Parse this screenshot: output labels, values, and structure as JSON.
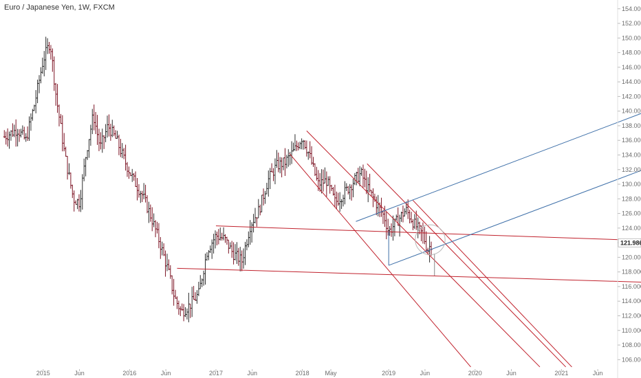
{
  "title": "Euro / Japanese Yen, 1W, FXCM",
  "chart_data": {
    "type": "ohlc-line",
    "symbol": "Euro / Japanese Yen",
    "interval": "1W",
    "source": "FXCM",
    "ylim": [
      105,
      155
    ],
    "xlim": [
      2014.5,
      2021.75
    ],
    "y_ticks": [
      106,
      108,
      110,
      112,
      114,
      116,
      118,
      120,
      122,
      124,
      126,
      128,
      130,
      132,
      134,
      136,
      138,
      140,
      142,
      144,
      146,
      148,
      150,
      152,
      154
    ],
    "y_tick_labels": [
      "106.000",
      "108.000",
      "110.000",
      "112.000",
      "114.000",
      "116.000",
      "118.000",
      "120.000",
      "122.000",
      "124.000",
      "126.000",
      "128.000",
      "130.000",
      "132.000",
      "134.000",
      "136.000",
      "138.000",
      "140.000",
      "142.000",
      "144.000",
      "146.000",
      "148.000",
      "150.000",
      "152.000",
      "154.000"
    ],
    "x_ticks": [
      {
        "t": 2015.0,
        "label": "2015"
      },
      {
        "t": 2015.42,
        "label": "Jun"
      },
      {
        "t": 2016.0,
        "label": "2016"
      },
      {
        "t": 2016.42,
        "label": "Jun"
      },
      {
        "t": 2017.0,
        "label": "2017"
      },
      {
        "t": 2017.42,
        "label": "Jun"
      },
      {
        "t": 2018.0,
        "label": "2018"
      },
      {
        "t": 2018.33,
        "label": "May"
      },
      {
        "t": 2019.0,
        "label": "2019"
      },
      {
        "t": 2019.42,
        "label": "Jun"
      },
      {
        "t": 2020.0,
        "label": "2020"
      },
      {
        "t": 2020.42,
        "label": "Jun"
      },
      {
        "t": 2021.0,
        "label": "2021"
      },
      {
        "t": 2021.42,
        "label": "Jun"
      }
    ],
    "last_price": 121.986,
    "last_price_label": "121.986",
    "price_path": [
      [
        2014.55,
        136.5
      ],
      [
        2014.7,
        137.5
      ],
      [
        2014.8,
        136.0
      ],
      [
        2014.9,
        141.0
      ],
      [
        2015.0,
        147.0
      ],
      [
        2015.08,
        149.5
      ],
      [
        2015.15,
        142.0
      ],
      [
        2015.25,
        134.0
      ],
      [
        2015.35,
        128.0
      ],
      [
        2015.42,
        127.5
      ],
      [
        2015.5,
        134.5
      ],
      [
        2015.58,
        139.5
      ],
      [
        2015.66,
        135.0
      ],
      [
        2015.75,
        138.0
      ],
      [
        2015.85,
        136.0
      ],
      [
        2015.95,
        133.0
      ],
      [
        2016.05,
        130.5
      ],
      [
        2016.15,
        128.5
      ],
      [
        2016.25,
        125.5
      ],
      [
        2016.35,
        122.0
      ],
      [
        2016.45,
        118.0
      ],
      [
        2016.52,
        114.5
      ],
      [
        2016.6,
        112.5
      ],
      [
        2016.7,
        113.5
      ],
      [
        2016.8,
        115.0
      ],
      [
        2016.9,
        121.0
      ],
      [
        2017.0,
        123.0
      ],
      [
        2017.1,
        122.5
      ],
      [
        2017.2,
        120.5
      ],
      [
        2017.3,
        119.5
      ],
      [
        2017.4,
        124.5
      ],
      [
        2017.5,
        126.5
      ],
      [
        2017.6,
        130.5
      ],
      [
        2017.7,
        132.5
      ],
      [
        2017.8,
        133.0
      ],
      [
        2017.9,
        134.5
      ],
      [
        2018.0,
        136.5
      ],
      [
        2018.08,
        134.0
      ],
      [
        2018.18,
        130.0
      ],
      [
        2018.28,
        130.5
      ],
      [
        2018.38,
        127.5
      ],
      [
        2018.5,
        129.0
      ],
      [
        2018.6,
        130.5
      ],
      [
        2018.68,
        131.5
      ],
      [
        2018.75,
        129.5
      ],
      [
        2018.85,
        127.5
      ],
      [
        2018.95,
        125.5
      ],
      [
        2019.0,
        123.5
      ],
      [
        2019.1,
        125.0
      ],
      [
        2019.2,
        126.5
      ],
      [
        2019.3,
        124.5
      ],
      [
        2019.4,
        123.0
      ],
      [
        2019.45,
        121.0
      ],
      [
        2019.5,
        121.986
      ]
    ],
    "drawings": [
      {
        "kind": "trendline",
        "color": "#c0202b",
        "from": [
          2017.0,
          124.3
        ],
        "to": [
          2021.95,
          122.3
        ]
      },
      {
        "kind": "trendline",
        "color": "#c0202b",
        "from": [
          2016.55,
          118.5
        ],
        "to": [
          2021.95,
          116.6
        ]
      },
      {
        "kind": "trendline",
        "color": "#c0202b",
        "from": [
          2018.05,
          137.3
        ],
        "to": [
          2020.75,
          105.0
        ]
      },
      {
        "kind": "trendline",
        "color": "#c0202b",
        "from": [
          2017.85,
          134.2
        ],
        "to": [
          2019.95,
          105.0
        ]
      },
      {
        "kind": "trendline",
        "color": "#c0202b",
        "from": [
          2018.75,
          132.8
        ],
        "to": [
          2021.05,
          105.0
        ]
      },
      {
        "kind": "trendline",
        "color": "#c0202b",
        "from": [
          2019.28,
          127.8
        ],
        "to": [
          2021.12,
          105.0
        ]
      },
      {
        "kind": "trendline",
        "color": "#3d6fa8",
        "from": [
          2018.62,
          124.9
        ],
        "to": [
          2021.95,
          139.8
        ]
      },
      {
        "kind": "trendline",
        "color": "#3d6fa8",
        "from": [
          2019.0,
          118.9
        ],
        "to": [
          2021.95,
          132.0
        ]
      },
      {
        "kind": "trendline",
        "color": "#3d6fa8",
        "from": [
          2019.0,
          118.9
        ],
        "to": [
          2019.0,
          123.6
        ]
      },
      {
        "kind": "trendline",
        "color": "#888888",
        "from": [
          2019.53,
          120.5
        ],
        "to": [
          2019.53,
          117.5
        ]
      },
      {
        "kind": "circle",
        "color": "#b8b8b8",
        "center": [
          2019.48,
          122.4
        ],
        "radius_weeks": 9
      }
    ]
  }
}
